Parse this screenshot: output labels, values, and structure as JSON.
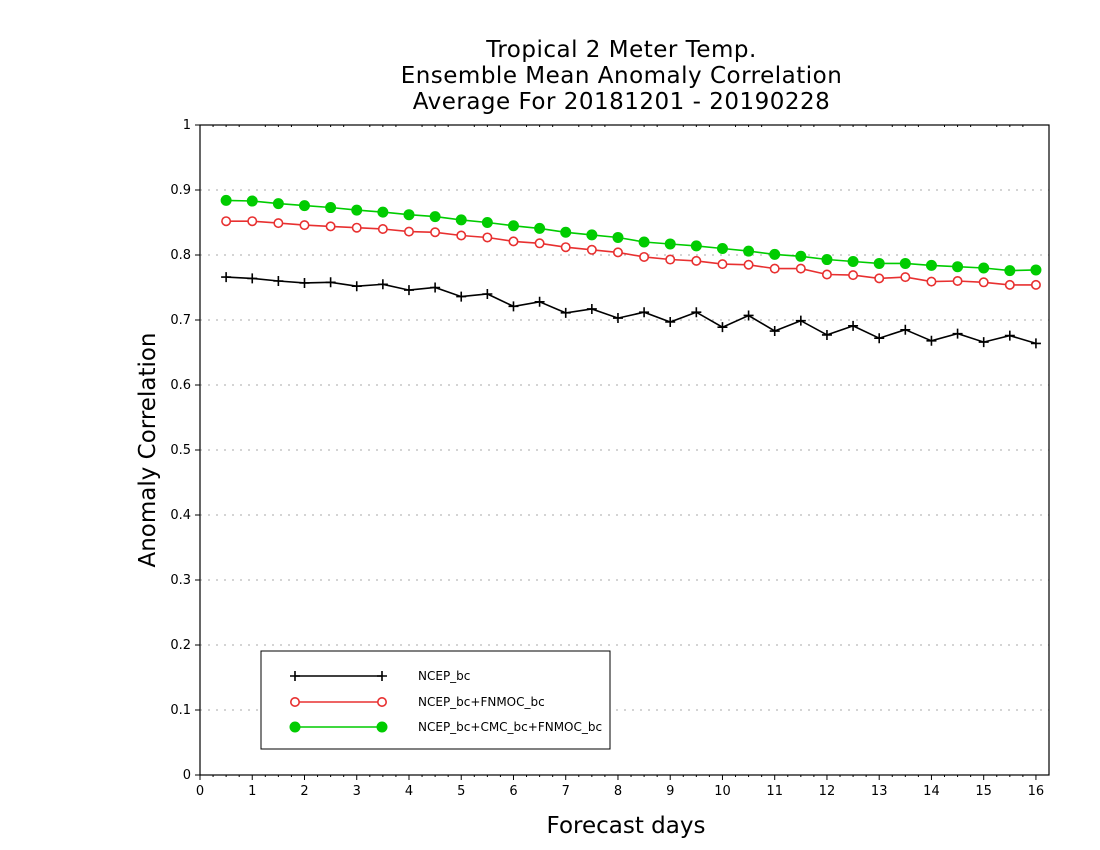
{
  "chart_data": {
    "type": "line",
    "title_lines": [
      "Tropical 2 Meter Temp.",
      "Ensemble Mean Anomaly Correlation",
      "Average For 20181201 - 20190228"
    ],
    "xlabel": "Forecast days",
    "ylabel": "Anomaly Correlation",
    "xlim": [
      0,
      16.25
    ],
    "ylim": [
      0,
      1
    ],
    "x_ticks": [
      "0",
      "1",
      "2",
      "3",
      "4",
      "5",
      "6",
      "7",
      "8",
      "9",
      "10",
      "11",
      "12",
      "13",
      "14",
      "15",
      "16"
    ],
    "y_ticks": [
      "0",
      "0.1",
      "0.2",
      "0.3",
      "0.4",
      "0.5",
      "0.6",
      "0.7",
      "0.8",
      "0.9",
      "1"
    ],
    "grid": "horizontal dotted",
    "legend_position": "bottom-left",
    "x": [
      0.5,
      1,
      1.5,
      2,
      2.5,
      3,
      3.5,
      4,
      4.5,
      5,
      5.5,
      6,
      6.5,
      7,
      7.5,
      8,
      8.5,
      9,
      9.5,
      10,
      10.5,
      11,
      11.5,
      12,
      12.5,
      13,
      13.5,
      14,
      14.5,
      15,
      15.5,
      16
    ],
    "series": [
      {
        "name": "NCEP_bc",
        "color": "#000000",
        "marker": "plus",
        "values": [
          0.766,
          0.764,
          0.76,
          0.757,
          0.758,
          0.752,
          0.755,
          0.746,
          0.75,
          0.736,
          0.74,
          0.721,
          0.728,
          0.711,
          0.717,
          0.703,
          0.712,
          0.697,
          0.712,
          0.689,
          0.707,
          0.683,
          0.699,
          0.677,
          0.691,
          0.672,
          0.685,
          0.668,
          0.679,
          0.666,
          0.676,
          0.664
        ]
      },
      {
        "name": "NCEP_bc+FNMOC_bc",
        "color": "#e83030",
        "marker": "open-circle",
        "values": [
          0.852,
          0.852,
          0.849,
          0.846,
          0.844,
          0.842,
          0.84,
          0.836,
          0.835,
          0.83,
          0.827,
          0.821,
          0.818,
          0.812,
          0.808,
          0.804,
          0.797,
          0.793,
          0.791,
          0.786,
          0.785,
          0.779,
          0.779,
          0.77,
          0.769,
          0.764,
          0.766,
          0.759,
          0.76,
          0.758,
          0.754,
          0.754
        ]
      },
      {
        "name": "NCEP_bc+CMC_bc+FNMOC_bc",
        "color": "#00cc00",
        "marker": "filled-circle",
        "values": [
          0.884,
          0.883,
          0.879,
          0.876,
          0.873,
          0.869,
          0.866,
          0.862,
          0.859,
          0.854,
          0.85,
          0.845,
          0.841,
          0.835,
          0.831,
          0.827,
          0.82,
          0.817,
          0.814,
          0.81,
          0.806,
          0.801,
          0.798,
          0.793,
          0.79,
          0.787,
          0.787,
          0.784,
          0.782,
          0.78,
          0.776,
          0.777
        ]
      }
    ]
  }
}
